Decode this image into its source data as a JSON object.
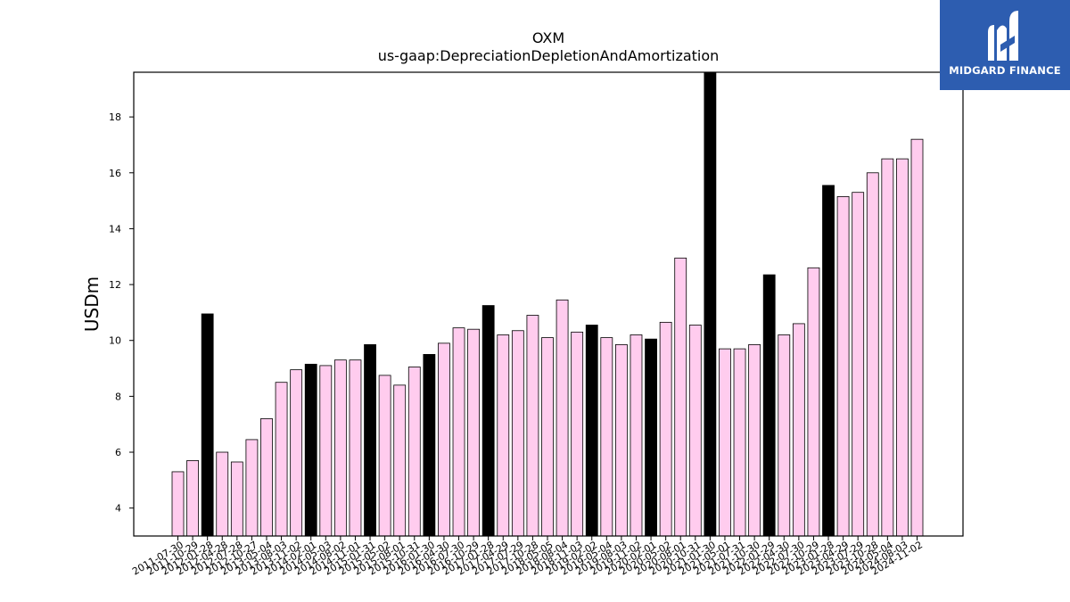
{
  "chart_data": {
    "type": "bar",
    "title": "OXM",
    "subtitle": "us-gaap:DepreciationDepletionAndAmortization",
    "ylabel": "USDm",
    "ylim": [
      3,
      19.6
    ],
    "yticks": [
      4,
      6,
      8,
      10,
      12,
      14,
      16,
      18
    ],
    "grid": false,
    "categories": [
      "2011-07-30",
      "2011-10-29",
      "2012-01-28",
      "2012-04-28",
      "2012-07-28",
      "2012-10-27",
      "2013-05-04",
      "2013-08-03",
      "2013-11-02",
      "2014-02-01",
      "2014-05-03",
      "2014-08-02",
      "2014-11-01",
      "2015-01-31",
      "2015-05-02",
      "2015-08-01",
      "2015-10-31",
      "2016-01-30",
      "2016-04-30",
      "2016-07-30",
      "2016-10-29",
      "2017-01-28",
      "2017-04-29",
      "2017-07-29",
      "2017-10-28",
      "2018-05-05",
      "2018-08-04",
      "2018-11-03",
      "2019-02-02",
      "2019-05-04",
      "2019-08-03",
      "2019-11-02",
      "2020-02-01",
      "2020-05-02",
      "2020-08-01",
      "2020-10-31",
      "2021-01-30",
      "2021-05-01",
      "2021-07-31",
      "2021-10-30",
      "2022-01-29",
      "2022-04-30",
      "2022-07-30",
      "2022-10-29",
      "2023-01-28",
      "2023-04-29",
      "2023-07-29",
      "2023-10-28",
      "2024-05-04",
      "2024-08-03",
      "2024-11-02"
    ],
    "values": [
      5.3,
      5.7,
      10.95,
      6.0,
      5.65,
      6.45,
      7.2,
      8.5,
      8.95,
      9.15,
      9.1,
      9.3,
      9.3,
      9.85,
      8.75,
      8.4,
      9.05,
      9.5,
      9.9,
      10.45,
      10.4,
      11.25,
      10.2,
      10.35,
      10.9,
      10.1,
      11.45,
      10.3,
      10.55,
      10.1,
      9.85,
      10.2,
      10.05,
      10.65,
      12.95,
      10.55,
      19.6,
      9.7,
      9.7,
      9.85,
      12.35,
      10.2,
      10.6,
      12.6,
      15.55,
      15.15,
      15.3,
      16.0,
      16.5,
      16.5,
      17.2
    ],
    "highlighted": [
      false,
      false,
      true,
      false,
      false,
      false,
      false,
      false,
      false,
      true,
      false,
      false,
      false,
      true,
      false,
      false,
      false,
      true,
      false,
      false,
      false,
      true,
      false,
      false,
      false,
      false,
      false,
      false,
      true,
      false,
      false,
      false,
      true,
      false,
      false,
      false,
      true,
      false,
      false,
      false,
      true,
      false,
      false,
      false,
      true,
      false,
      false,
      false,
      false,
      false,
      false
    ],
    "colors": {
      "normal_fill": "#ffccee",
      "highlight_fill": "#000000",
      "edge": "#000000"
    }
  },
  "logo": {
    "text": "MIDGARD FINANCE",
    "background": "#2d5db0"
  }
}
